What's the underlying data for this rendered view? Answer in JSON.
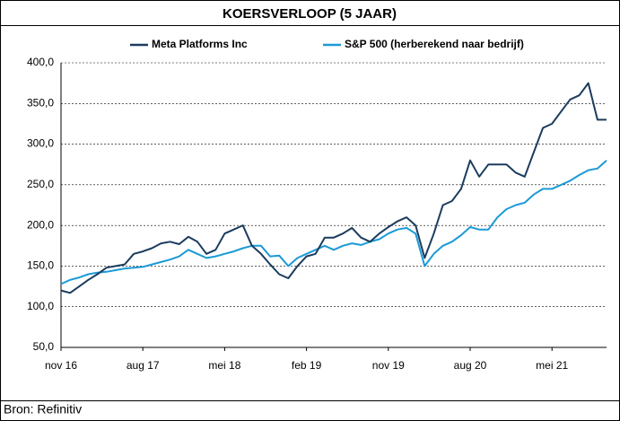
{
  "chart_data": {
    "type": "line",
    "title": "KOERSVERLOOP (5 JAAR)",
    "categories": [
      "nov 16",
      null,
      null,
      null,
      null,
      null,
      null,
      null,
      null,
      "aug 17",
      null,
      null,
      null,
      null,
      null,
      null,
      null,
      null,
      "mei 18",
      null,
      null,
      null,
      null,
      null,
      null,
      null,
      null,
      "feb 19",
      null,
      null,
      null,
      null,
      null,
      null,
      null,
      null,
      "nov 19",
      null,
      null,
      null,
      null,
      null,
      null,
      null,
      null,
      "aug 20",
      null,
      null,
      null,
      null,
      null,
      null,
      null,
      null,
      "mei 21",
      null,
      null,
      null,
      null,
      null,
      null
    ],
    "series": [
      {
        "name": "Meta Platforms Inc",
        "color": "#1c3c5e",
        "values": [
          120,
          117,
          125,
          133,
          140,
          148,
          150,
          152,
          165,
          168,
          172,
          178,
          180,
          177,
          186,
          180,
          165,
          170,
          190,
          195,
          200,
          175,
          165,
          152,
          140,
          135,
          150,
          162,
          165,
          185,
          185,
          190,
          197,
          185,
          180,
          190,
          198,
          205,
          210,
          200,
          160,
          190,
          225,
          230,
          245,
          280,
          260,
          275,
          275,
          275,
          265,
          260,
          290,
          320,
          325,
          340,
          355,
          360,
          375,
          330,
          330
        ]
      },
      {
        "name": "S&P 500 (herberekend naar bedrijf)",
        "color": "#1b9ad6",
        "values": [
          128,
          133,
          136,
          140,
          142,
          143,
          145,
          147,
          148,
          149,
          152,
          155,
          158,
          162,
          170,
          165,
          160,
          162,
          165,
          168,
          172,
          175,
          175,
          162,
          163,
          150,
          160,
          165,
          170,
          175,
          170,
          175,
          178,
          176,
          180,
          183,
          190,
          195,
          197,
          190,
          150,
          165,
          175,
          180,
          188,
          198,
          195,
          195,
          210,
          220,
          225,
          228,
          238,
          245,
          245,
          250,
          255,
          262,
          268,
          270,
          280
        ]
      }
    ],
    "ylim": [
      50,
      400
    ],
    "yticks": [
      {
        "value": 50,
        "label": "50,0"
      },
      {
        "value": 100,
        "label": "100,0"
      },
      {
        "value": 150,
        "label": "150,0"
      },
      {
        "value": 200,
        "label": "200,0"
      },
      {
        "value": 250,
        "label": "250,0"
      },
      {
        "value": 300,
        "label": "300,0"
      },
      {
        "value": 350,
        "label": "350,0"
      },
      {
        "value": 400,
        "label": "400,0"
      }
    ],
    "grid": true
  },
  "source": "Bron: Refinitiv"
}
